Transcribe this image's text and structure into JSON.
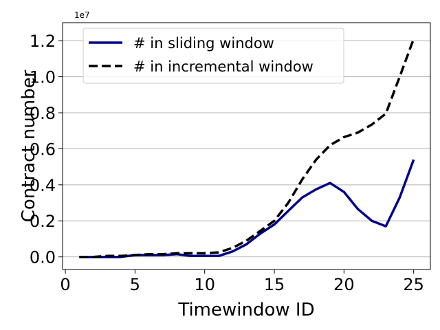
{
  "chart_data": {
    "type": "line",
    "title": "",
    "xlabel": "Timewindow ID",
    "ylabel": "Contract number",
    "y_offset_label": "1e7",
    "xlim": [
      -0.2,
      26.2
    ],
    "ylim": [
      -0.07,
      1.3
    ],
    "y_scale_factor": 10000000,
    "xticks": [
      0,
      5,
      10,
      15,
      20,
      25
    ],
    "xtick_labels": [
      "0",
      "5",
      "10",
      "15",
      "20",
      "25"
    ],
    "yticks": [
      0.0,
      0.2,
      0.4,
      0.6,
      0.8,
      1.0,
      1.2
    ],
    "ytick_labels": [
      "0.0",
      "0.2",
      "0.4",
      "0.6",
      "0.8",
      "1.0",
      "1.2"
    ],
    "grid": "horizontal",
    "legend_position": "top-left",
    "x": [
      1,
      2,
      3,
      4,
      5,
      6,
      7,
      8,
      9,
      10,
      11,
      12,
      13,
      14,
      15,
      16,
      17,
      18,
      19,
      20,
      21,
      22,
      23,
      24,
      25
    ],
    "series": [
      {
        "name": "# in sliding window",
        "color": "#00008b",
        "style": "solid",
        "values": [
          0.0,
          0.0,
          0.0,
          0.0,
          0.01,
          0.01,
          0.01,
          0.015,
          0.005,
          0.005,
          0.005,
          0.03,
          0.07,
          0.13,
          0.18,
          0.255,
          0.33,
          0.375,
          0.41,
          0.36,
          0.265,
          0.2,
          0.17,
          0.33,
          0.54
        ]
      },
      {
        "name": "# in incremental window",
        "color": "#000000",
        "style": "dashed",
        "values": [
          0.0,
          0.0,
          0.005,
          0.005,
          0.01,
          0.015,
          0.015,
          0.02,
          0.02,
          0.02,
          0.025,
          0.05,
          0.09,
          0.145,
          0.2,
          0.3,
          0.43,
          0.54,
          0.62,
          0.665,
          0.69,
          0.735,
          0.795,
          1.0,
          1.21
        ]
      }
    ]
  }
}
